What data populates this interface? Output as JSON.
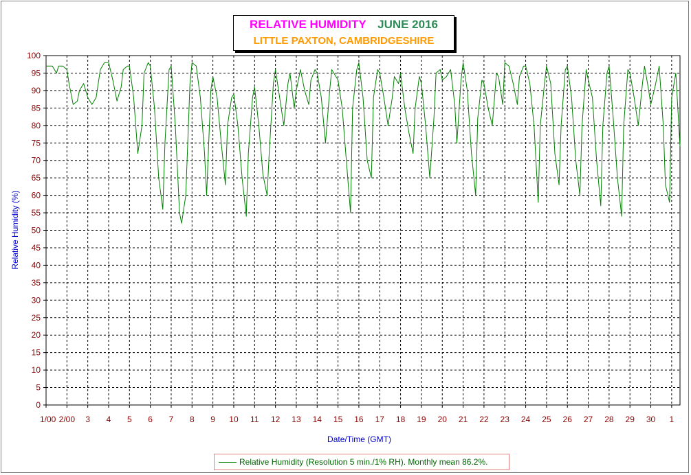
{
  "title": {
    "main": "RELATIVE HUMIDITY",
    "date": "JUNE 2016",
    "subtitle": "LITTLE PAXTON, CAMBRIDGESHIRE"
  },
  "axes": {
    "ylabel": "Relative Humidity (%)",
    "xlabel": "Date/Time (GMT)"
  },
  "legend": {
    "text": "Relative Humidity (Resolution 5 min./1% RH). Monthly mean 86.2%."
  },
  "colors": {
    "series": "#008000",
    "title_main": "#ff00ff",
    "title_date": "#2e8b57",
    "subtitle": "#ff9900",
    "tick_labels": "#8b0000",
    "axis_labels": "#0000cd"
  },
  "chart_data": {
    "type": "line",
    "title": "RELATIVE HUMIDITY JUNE 2016",
    "subtitle": "LITTLE PAXTON, CAMBRIDGESHIRE",
    "xlabel": "Date/Time (GMT)",
    "ylabel": "Relative Humidity (%)",
    "xlim": [
      1,
      31.4
    ],
    "ylim": [
      0,
      100
    ],
    "grid": true,
    "legend_position": "bottom",
    "x_tick_labels": [
      "1/00",
      "2/00",
      "3",
      "4",
      "5",
      "6",
      "7",
      "8",
      "9",
      "10",
      "11",
      "12",
      "13",
      "14",
      "15",
      "16",
      "17",
      "18",
      "19",
      "20",
      "21",
      "22",
      "23",
      "24",
      "25",
      "26",
      "27",
      "28",
      "29",
      "30",
      "1"
    ],
    "y_ticks": [
      0,
      5,
      10,
      15,
      20,
      25,
      30,
      35,
      40,
      45,
      50,
      55,
      60,
      65,
      70,
      75,
      80,
      85,
      90,
      95,
      100
    ],
    "series": [
      {
        "name": "Relative Humidity (Resolution 5 min./1% RH). Monthly mean 86.2%.",
        "x": [
          1.0,
          1.3,
          1.5,
          1.6,
          1.8,
          2.0,
          2.1,
          2.3,
          2.5,
          2.6,
          2.8,
          3.0,
          3.2,
          3.4,
          3.6,
          3.8,
          4.0,
          4.2,
          4.4,
          4.6,
          4.7,
          4.9,
          5.0,
          5.2,
          5.4,
          5.6,
          5.7,
          5.9,
          6.0,
          6.2,
          6.4,
          6.6,
          6.7,
          6.9,
          7.0,
          7.2,
          7.4,
          7.5,
          7.7,
          7.9,
          8.0,
          8.2,
          8.4,
          8.6,
          8.7,
          8.9,
          9.0,
          9.2,
          9.4,
          9.6,
          9.7,
          9.9,
          10.0,
          10.2,
          10.4,
          10.6,
          10.7,
          10.9,
          11.0,
          11.2,
          11.4,
          11.6,
          11.7,
          11.9,
          12.0,
          12.2,
          12.4,
          12.6,
          12.7,
          12.9,
          13.0,
          13.2,
          13.4,
          13.6,
          13.7,
          13.9,
          14.0,
          14.2,
          14.4,
          14.6,
          14.7,
          14.9,
          15.0,
          15.2,
          15.4,
          15.6,
          15.7,
          15.9,
          16.0,
          16.2,
          16.4,
          16.6,
          16.7,
          16.9,
          17.0,
          17.2,
          17.4,
          17.6,
          17.7,
          17.9,
          18.0,
          18.2,
          18.4,
          18.6,
          18.7,
          18.9,
          19.0,
          19.2,
          19.4,
          19.6,
          19.7,
          19.9,
          20.0,
          20.2,
          20.4,
          20.6,
          20.7,
          20.9,
          21.0,
          21.2,
          21.4,
          21.6,
          21.7,
          21.9,
          22.0,
          22.2,
          22.4,
          22.6,
          22.7,
          22.9,
          23.0,
          23.2,
          23.4,
          23.6,
          23.7,
          23.9,
          24.0,
          24.2,
          24.4,
          24.6,
          24.7,
          24.9,
          25.0,
          25.2,
          25.4,
          25.6,
          25.7,
          25.9,
          26.0,
          26.2,
          26.4,
          26.6,
          26.7,
          26.9,
          27.0,
          27.2,
          27.4,
          27.6,
          27.7,
          27.9,
          28.0,
          28.2,
          28.4,
          28.6,
          28.7,
          28.9,
          29.0,
          29.2,
          29.4,
          29.6,
          29.7,
          29.9,
          30.0,
          30.2,
          30.4,
          30.6,
          30.7,
          30.9,
          31.0,
          31.2,
          31.4
        ],
        "y": [
          97,
          97,
          95,
          97,
          97,
          96,
          92,
          86,
          87,
          90,
          92,
          88,
          86,
          88,
          96,
          98,
          98,
          93,
          87,
          91,
          96,
          97,
          97,
          88,
          72,
          80,
          95,
          98,
          97,
          85,
          65,
          56,
          75,
          96,
          97,
          80,
          55,
          52,
          60,
          92,
          98,
          97,
          88,
          72,
          60,
          90,
          94,
          88,
          75,
          63,
          80,
          88,
          89,
          80,
          65,
          54,
          72,
          88,
          91,
          80,
          66,
          60,
          72,
          92,
          96,
          88,
          80,
          92,
          95,
          85,
          90,
          96,
          90,
          86,
          93,
          96,
          95,
          88,
          75,
          90,
          96,
          94,
          93,
          85,
          70,
          55,
          85,
          96,
          98,
          88,
          70,
          65,
          88,
          96,
          95,
          88,
          80,
          88,
          94,
          92,
          95,
          85,
          78,
          72,
          85,
          94,
          92,
          80,
          65,
          82,
          95,
          96,
          93,
          94,
          96,
          86,
          75,
          93,
          98,
          90,
          72,
          60,
          82,
          93,
          92,
          85,
          80,
          95,
          94,
          86,
          98,
          97,
          92,
          86,
          94,
          97,
          97,
          92,
          80,
          58,
          80,
          92,
          97,
          92,
          72,
          63,
          80,
          96,
          97,
          88,
          70,
          60,
          80,
          96,
          93,
          88,
          70,
          57,
          80,
          95,
          97,
          82,
          65,
          54,
          80,
          96,
          95,
          88,
          80,
          92,
          97,
          90,
          86,
          91,
          97,
          80,
          63,
          58,
          88,
          95,
          74
        ]
      }
    ]
  }
}
